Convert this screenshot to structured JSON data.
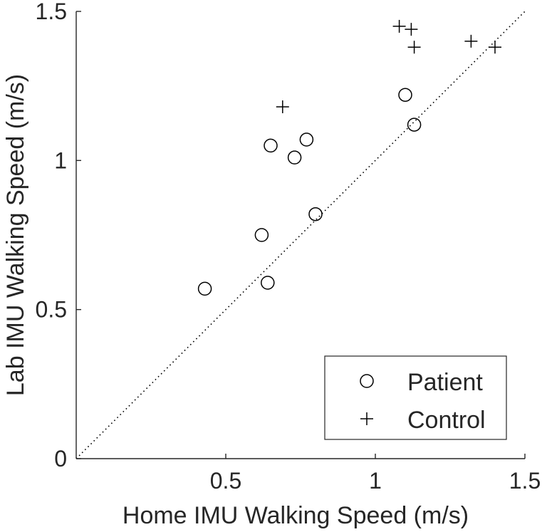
{
  "chart_data": {
    "type": "scatter",
    "xlabel": "Home IMU Walking Speed (m/s)",
    "ylabel": "Lab IMU Walking Speed (m/s)",
    "xlim": [
      0,
      1.5
    ],
    "ylim": [
      0,
      1.5
    ],
    "xticks": [
      0.5,
      1,
      1.5
    ],
    "xtick_labels": [
      "0.5",
      "1",
      "1.5"
    ],
    "yticks": [
      0,
      0.5,
      1,
      1.5
    ],
    "ytick_labels": [
      "0",
      "0.5",
      "1",
      "1.5"
    ],
    "grid": false,
    "legend_position": "bottom-right",
    "reference_line": {
      "style": "dotted",
      "from": [
        0,
        0
      ],
      "to": [
        1.5,
        1.5
      ]
    },
    "series": [
      {
        "name": "Patient",
        "marker": "circle",
        "points": [
          [
            0.43,
            0.57
          ],
          [
            0.64,
            0.59
          ],
          [
            0.62,
            0.75
          ],
          [
            0.8,
            0.82
          ],
          [
            0.65,
            1.05
          ],
          [
            0.73,
            1.01
          ],
          [
            0.77,
            1.07
          ],
          [
            1.1,
            1.22
          ],
          [
            1.13,
            1.12
          ]
        ]
      },
      {
        "name": "Control",
        "marker": "plus",
        "points": [
          [
            0.69,
            1.18
          ],
          [
            1.08,
            1.45
          ],
          [
            1.12,
            1.44
          ],
          [
            1.13,
            1.38
          ],
          [
            1.32,
            1.4
          ],
          [
            1.4,
            1.38
          ]
        ]
      }
    ],
    "colors": {
      "marker": "#000000",
      "axis": "#262626",
      "text": "#262626"
    }
  }
}
